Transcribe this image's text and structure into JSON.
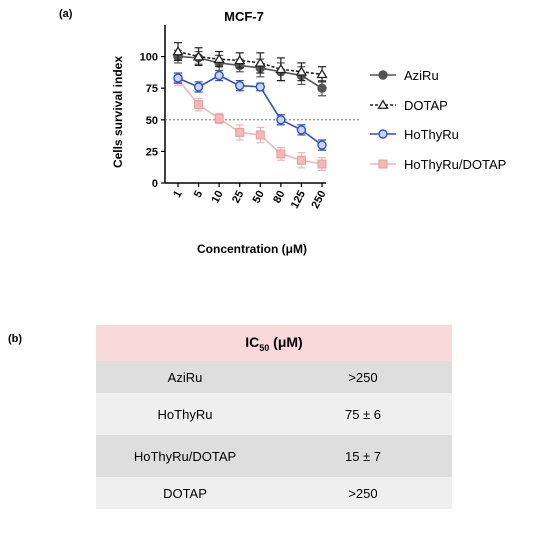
{
  "panel_a_label": "(a)",
  "panel_b_label": "(b)",
  "chart_data": {
    "type": "line",
    "title": "MCF-7",
    "xlabel": "Concentration (μM)",
    "ylabel": "Cells survival index",
    "categories": [
      "1",
      "5",
      "10",
      "25",
      "50",
      "80",
      "125",
      "250"
    ],
    "ylim": [
      0,
      125
    ],
    "yticks": [
      "0",
      "25",
      "50",
      "75",
      "100"
    ],
    "reference_line": 50,
    "legend_position": "right",
    "series": [
      {
        "name": "AziRu",
        "marker": "circle",
        "color": "#555555",
        "line": "solid",
        "values": [
          100,
          99,
          95,
          93,
          91,
          88,
          85,
          75
        ],
        "errors": [
          5,
          5,
          6,
          5,
          7,
          7,
          7,
          6
        ]
      },
      {
        "name": "DOTAP",
        "marker": "triangle",
        "color": "#222222",
        "line": "dashed",
        "values": [
          104,
          100,
          98,
          97,
          95,
          90,
          88,
          86
        ],
        "errors": [
          7,
          7,
          6,
          6,
          8,
          9,
          7,
          6
        ]
      },
      {
        "name": "HoThyRu",
        "marker": "circle",
        "color": "#2a4fd8",
        "line": "solid",
        "values": [
          83,
          76,
          85,
          77,
          76,
          50,
          42,
          30
        ],
        "errors": [
          4,
          4,
          4,
          4,
          3,
          4,
          4,
          4
        ]
      },
      {
        "name": "HoThyRu/DOTAP",
        "marker": "square",
        "color": "#f4b6b6",
        "line": "solid",
        "values": [
          82,
          62,
          51,
          40,
          38,
          23,
          18,
          15
        ],
        "errors": [
          5,
          5,
          4,
          6,
          6,
          5,
          6,
          5
        ]
      }
    ]
  },
  "table": {
    "header_main": "IC",
    "header_sub": "50",
    "header_unit": " (μM)",
    "rows": [
      {
        "compound": "AziRu",
        "value": ">250"
      },
      {
        "compound": "HoThyRu",
        "value": "75 ± 6"
      },
      {
        "compound": "HoThyRu/DOTAP",
        "value": "15 ± 7"
      },
      {
        "compound": "DOTAP",
        "value": ">250"
      }
    ]
  }
}
